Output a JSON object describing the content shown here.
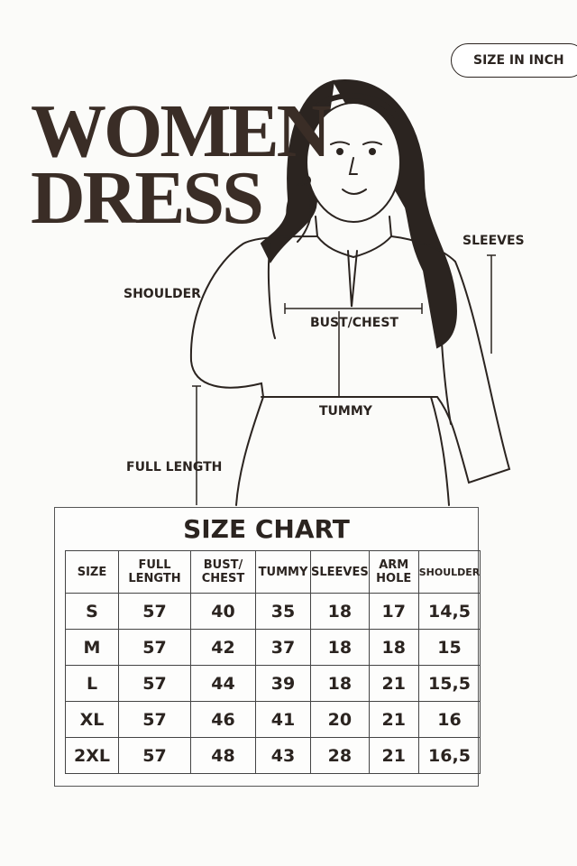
{
  "badge": "SIZE IN INCH",
  "title": {
    "line1": "WOMEN",
    "line2": "DRESS"
  },
  "labels": {
    "sleeves": "SLEEVES",
    "shoulder": "SHOULDER",
    "bust": "BUST/CHEST",
    "tummy": "TUMMY",
    "full_length": "FULL LENGTH"
  },
  "table": {
    "title": "SIZE CHART",
    "header": [
      "SIZE",
      "FULL LENGTH",
      "BUST/ CHEST",
      "TUMMY",
      "SLEEVES",
      "ARM HOLE",
      "SHOULDER"
    ],
    "rows": [
      [
        "S",
        "57",
        "40",
        "35",
        "18",
        "17",
        "14,5"
      ],
      [
        "M",
        "57",
        "42",
        "37",
        "18",
        "18",
        "15"
      ],
      [
        "L",
        "57",
        "44",
        "39",
        "18",
        "21",
        "15,5"
      ],
      [
        "XL",
        "57",
        "46",
        "41",
        "20",
        "21",
        "16"
      ],
      [
        "2XL",
        "57",
        "48",
        "43",
        "28",
        "21",
        "16,5"
      ]
    ]
  }
}
